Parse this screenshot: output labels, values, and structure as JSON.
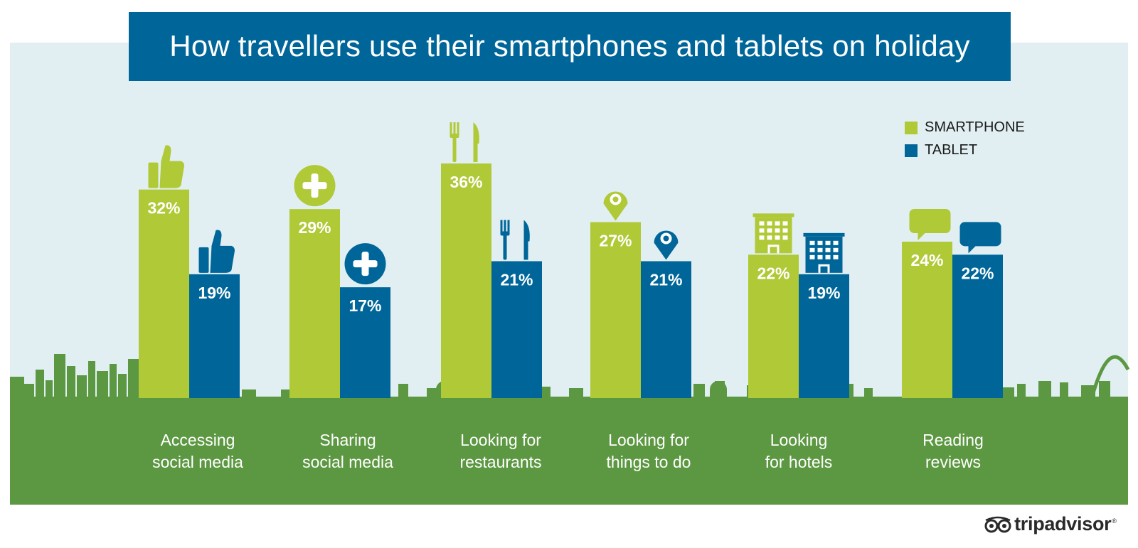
{
  "chart_data": {
    "type": "bar",
    "title": "How travellers use their smartphones and tablets on holiday",
    "categories": [
      "Accessing\nsocial media",
      "Sharing\nsocial media",
      "Looking for\nrestaurants",
      "Looking for\nthings to do",
      "Looking\nfor hotels",
      "Reading\nreviews"
    ],
    "series": [
      {
        "name": "SMARTPHONE",
        "values": [
          32,
          29,
          36,
          27,
          22,
          24
        ],
        "color": "#b0c936"
      },
      {
        "name": "TABLET",
        "values": [
          19,
          17,
          21,
          21,
          19,
          22
        ],
        "color": "#006699"
      }
    ],
    "category_icons": [
      "thumbs-up-icon",
      "plus-circle-icon",
      "fork-knife-icon",
      "map-pin-icon",
      "hotel-icon",
      "speech-bubble-icon"
    ],
    "value_suffix": "%",
    "ylim": [
      0,
      36
    ],
    "legend_position": "top-right",
    "grid": false
  },
  "brand": {
    "name": "tripadvisor",
    "registered": "®"
  },
  "colors": {
    "sky": "#e1eff3",
    "ground": "#5c9841",
    "banner": "#006699",
    "smartphone": "#b0c936",
    "tablet": "#006699"
  }
}
